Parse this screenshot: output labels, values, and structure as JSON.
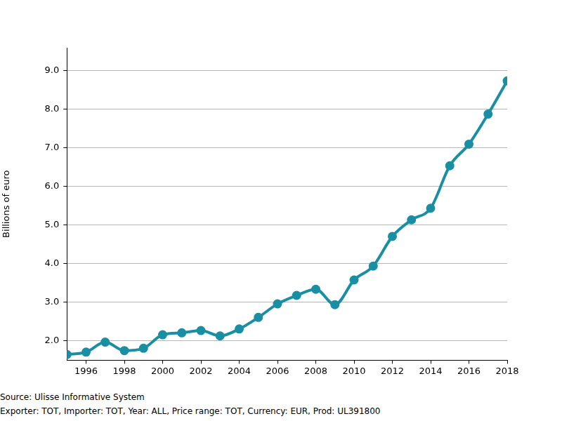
{
  "chart_data": {
    "type": "line",
    "y_label": "Billions of euro",
    "footnotes": [
      "Source: Ulisse Informative System",
      "Exporter: TOT, Importer: TOT, Year: ALL, Price range: TOT, Currency: EUR, Prod: UL391800"
    ],
    "x": [
      1995,
      1996,
      1997,
      1998,
      1999,
      2000,
      2001,
      2002,
      2003,
      2004,
      2005,
      2006,
      2007,
      2008,
      2009,
      2010,
      2011,
      2012,
      2013,
      2014,
      2015,
      2016,
      2017,
      2018
    ],
    "values": [
      1.65,
      1.71,
      1.97,
      1.75,
      1.81,
      2.16,
      2.21,
      2.27,
      2.13,
      2.31,
      2.61,
      2.96,
      3.18,
      3.34,
      2.94,
      3.58,
      3.94,
      4.71,
      5.14,
      5.44,
      6.54,
      7.1,
      7.88,
      8.74
    ],
    "color": "#1a8ea3",
    "marker": "circle",
    "line_style": "solid",
    "xlim": [
      1995,
      2018
    ],
    "xticks": [
      1996,
      1998,
      2000,
      2002,
      2004,
      2006,
      2008,
      2010,
      2012,
      2014,
      2016,
      2018
    ],
    "ylim": [
      1.5,
      9.6
    ],
    "yticks": [
      {
        "value": 2,
        "label": "2.0"
      },
      {
        "value": 3,
        "label": "3.0"
      },
      {
        "value": 4,
        "label": "4.0"
      },
      {
        "value": 5,
        "label": "5.0"
      },
      {
        "value": 6,
        "label": "6.0"
      },
      {
        "value": 7,
        "label": "7.0"
      },
      {
        "value": 8,
        "label": "8.0"
      },
      {
        "value": 9,
        "label": "9.0"
      }
    ],
    "grid": true
  }
}
